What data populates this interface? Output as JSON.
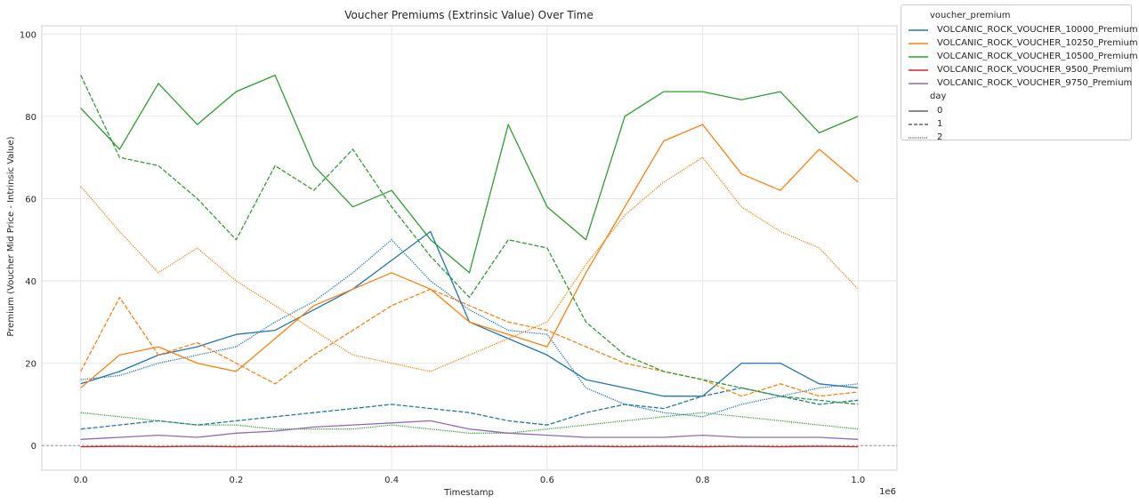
{
  "chart_data": {
    "type": "line",
    "title": "Voucher Premiums (Extrinsic Value) Over Time",
    "xlabel": "Timestamp",
    "ylabel": "Premium (Voucher Mid Price - Intrinsic Value)",
    "x_offset_text": "1e6",
    "xlim": [
      -0.05,
      1.05
    ],
    "ylim": [
      -6,
      102
    ],
    "x_ticks": [
      0.0,
      0.2,
      0.4,
      0.6,
      0.8,
      1.0
    ],
    "x_tick_labels": [
      "0.0",
      "0.2",
      "0.4",
      "0.6",
      "0.8",
      "1.0"
    ],
    "y_ticks": [
      0,
      20,
      40,
      60,
      80,
      100
    ],
    "y_tick_labels": [
      "0",
      "20",
      "40",
      "60",
      "80",
      "100"
    ],
    "grid": true,
    "reference_line_y": 0,
    "legend": {
      "placement": "outside-top-right",
      "hue_title": "voucher_premium",
      "style_title": "day",
      "style_entries": [
        {
          "label": "0",
          "dash": "solid"
        },
        {
          "label": "1",
          "dash": "dashed"
        },
        {
          "label": "2",
          "dash": "dotted"
        }
      ]
    },
    "x": [
      0.0,
      0.05,
      0.1,
      0.15,
      0.2,
      0.25,
      0.3,
      0.35,
      0.4,
      0.45,
      0.5,
      0.55,
      0.6,
      0.65,
      0.7,
      0.75,
      0.8,
      0.85,
      0.9,
      0.95,
      1.0
    ],
    "series": [
      {
        "name": "VOLCANIC_ROCK_VOUCHER_10000_Premium",
        "color": "#1f77b4",
        "day": "0",
        "values": [
          15,
          18,
          22,
          24,
          27,
          28,
          33,
          38,
          45,
          52,
          30,
          26,
          22,
          16,
          14,
          12,
          12,
          20,
          20,
          15,
          14
        ]
      },
      {
        "name": "VOLCANIC_ROCK_VOUCHER_10000_Premium",
        "color": "#1f77b4",
        "day": "1",
        "values": [
          4,
          5,
          6,
          5,
          6,
          7,
          8,
          9,
          10,
          9,
          8,
          6,
          5,
          8,
          10,
          9,
          12,
          14,
          12,
          10,
          11
        ]
      },
      {
        "name": "VOLCANIC_ROCK_VOUCHER_10000_Premium",
        "color": "#1f77b4",
        "day": "2",
        "values": [
          16,
          17,
          20,
          22,
          24,
          30,
          35,
          42,
          50,
          40,
          33,
          28,
          27,
          14,
          10,
          8,
          7,
          10,
          12,
          14,
          15
        ]
      },
      {
        "name": "VOLCANIC_ROCK_VOUCHER_10250_Premium",
        "color": "#ff7f0e",
        "day": "0",
        "values": [
          14,
          22,
          24,
          20,
          18,
          26,
          34,
          38,
          42,
          38,
          30,
          27,
          24,
          42,
          58,
          74,
          78,
          66,
          62,
          72,
          64
        ]
      },
      {
        "name": "VOLCANIC_ROCK_VOUCHER_10250_Premium",
        "color": "#ff7f0e",
        "day": "1",
        "values": [
          18,
          36,
          22,
          25,
          20,
          15,
          22,
          28,
          34,
          38,
          34,
          30,
          28,
          24,
          20,
          18,
          16,
          12,
          15,
          12,
          13
        ]
      },
      {
        "name": "VOLCANIC_ROCK_VOUCHER_10250_Premium",
        "color": "#ff7f0e",
        "day": "2",
        "values": [
          63,
          52,
          42,
          48,
          40,
          34,
          28,
          22,
          20,
          18,
          22,
          26,
          30,
          44,
          56,
          64,
          70,
          58,
          52,
          48,
          38
        ]
      },
      {
        "name": "VOLCANIC_ROCK_VOUCHER_10500_Premium",
        "color": "#2ca02c",
        "day": "0",
        "values": [
          82,
          72,
          88,
          78,
          86,
          90,
          68,
          58,
          62,
          50,
          42,
          78,
          58,
          50,
          80,
          86,
          86,
          84,
          86,
          76,
          80
        ]
      },
      {
        "name": "VOLCANIC_ROCK_VOUCHER_10500_Premium",
        "color": "#2ca02c",
        "day": "1",
        "values": [
          90,
          70,
          68,
          60,
          50,
          68,
          62,
          72,
          58,
          46,
          36,
          50,
          48,
          30,
          22,
          18,
          16,
          14,
          12,
          11,
          10
        ]
      },
      {
        "name": "VOLCANIC_ROCK_VOUCHER_10500_Premium",
        "color": "#2ca02c",
        "day": "2",
        "values": [
          8,
          7,
          6,
          5,
          5,
          4,
          4,
          4,
          5,
          4,
          3,
          3,
          4,
          5,
          6,
          7,
          8,
          7,
          6,
          5,
          4
        ]
      },
      {
        "name": "VOLCANIC_ROCK_VOUCHER_9500_Premium",
        "color": "#d62728",
        "day": "0",
        "values": [
          -0.3,
          -0.2,
          -0.3,
          -0.2,
          -0.3,
          -0.2,
          -0.3,
          -0.2,
          -0.3,
          -0.2,
          -0.3,
          -0.2,
          -0.3,
          -0.2,
          -0.3,
          -0.2,
          -0.3,
          -0.2,
          -0.3,
          -0.2,
          -0.3
        ]
      },
      {
        "name": "VOLCANIC_ROCK_VOUCHER_9750_Premium",
        "color": "#9467bd",
        "day": "0",
        "values": [
          1.5,
          2,
          2.5,
          2,
          3,
          3.5,
          4.5,
          5,
          5.5,
          6,
          4,
          3,
          2.5,
          2,
          2,
          2,
          2.5,
          2,
          2,
          2,
          1.5
        ]
      }
    ]
  }
}
